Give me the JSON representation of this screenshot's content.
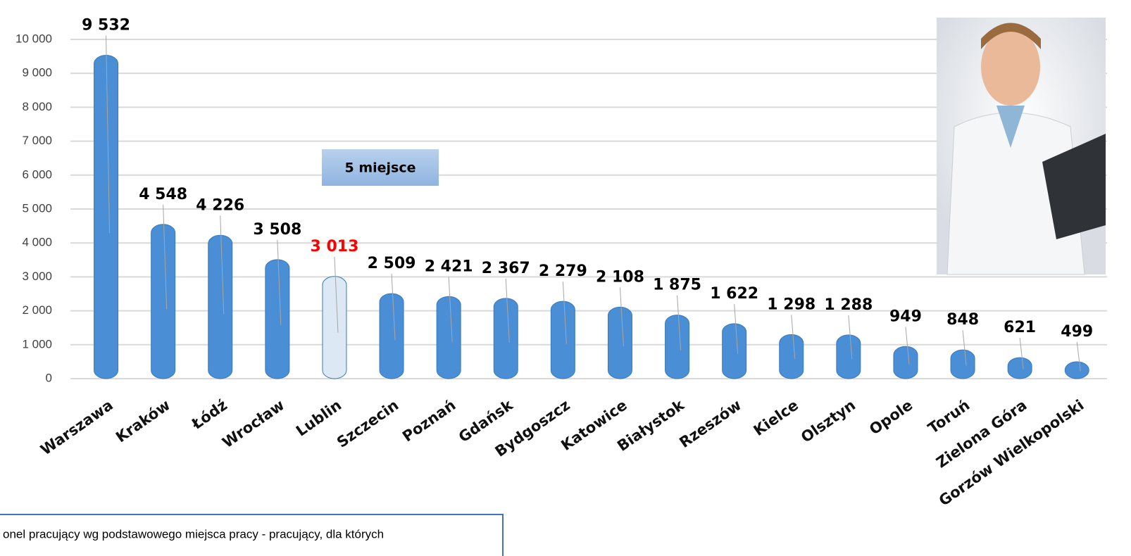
{
  "chart_data": {
    "type": "bar",
    "categories": [
      "Warszawa",
      "Kraków",
      "Łódź",
      "Wrocław",
      "Lublin",
      "Szczecin",
      "Poznań",
      "Gdańsk",
      "Bydgoszcz",
      "Katowice",
      "Białystok",
      "Rzeszów",
      "Kielce",
      "Olsztyn",
      "Opole",
      "Toruń",
      "Zielona Góra",
      "Gorzów Wielkopolski"
    ],
    "values": [
      9532,
      4548,
      4226,
      3508,
      3013,
      2509,
      2421,
      2367,
      2279,
      2108,
      1875,
      1622,
      1298,
      1288,
      949,
      848,
      621,
      499
    ],
    "value_labels": [
      "9 532",
      "4 548",
      "4 226",
      "3 508",
      "3 013",
      "2 509",
      "2 421",
      "2 367",
      "2 279",
      "2 108",
      "1 875",
      "1 622",
      "1 298",
      "1 288",
      "949",
      "848",
      "621",
      "499"
    ],
    "colors": [
      "#4a8fd6",
      "#4a8fd6",
      "#4a8fd6",
      "#4a8fd6",
      "#dce8f3",
      "#4a8fd6",
      "#4a8fd6",
      "#4a8fd6",
      "#4a8fd6",
      "#4a8fd6",
      "#4a8fd6",
      "#4a8fd6",
      "#4a8fd6",
      "#4a8fd6",
      "#4a8fd6",
      "#4a8fd6",
      "#4a8fd6",
      "#4a8fd6"
    ],
    "value_label_colors": [
      "#000000",
      "#000000",
      "#000000",
      "#000000",
      "#ff0000",
      "#000000",
      "#000000",
      "#000000",
      "#000000",
      "#000000",
      "#000000",
      "#000000",
      "#000000",
      "#000000",
      "#000000",
      "#000000",
      "#000000",
      "#000000"
    ],
    "ylim": [
      0,
      10000
    ],
    "yticks": [
      0,
      {
        "value": 1000,
        "label": "1 000"
      },
      {
        "value": 2000,
        "label": "2 000"
      },
      {
        "value": 3000,
        "label": "3 000"
      },
      {
        "value": 4000,
        "label": "4 000"
      },
      {
        "value": 5000,
        "label": "5 000"
      },
      {
        "value": 6000,
        "label": "6 000"
      },
      {
        "value": 7000,
        "label": "7 000"
      },
      {
        "value": 8000,
        "label": "8 000"
      },
      {
        "value": 9000,
        "label": "9 000"
      },
      {
        "value": 10000,
        "label": "10 000"
      }
    ],
    "grid": true,
    "annotation": "5 miejsce",
    "footnote": "onel pracujący wg podstawowego miejsca pracy - pracujący, dla których"
  }
}
